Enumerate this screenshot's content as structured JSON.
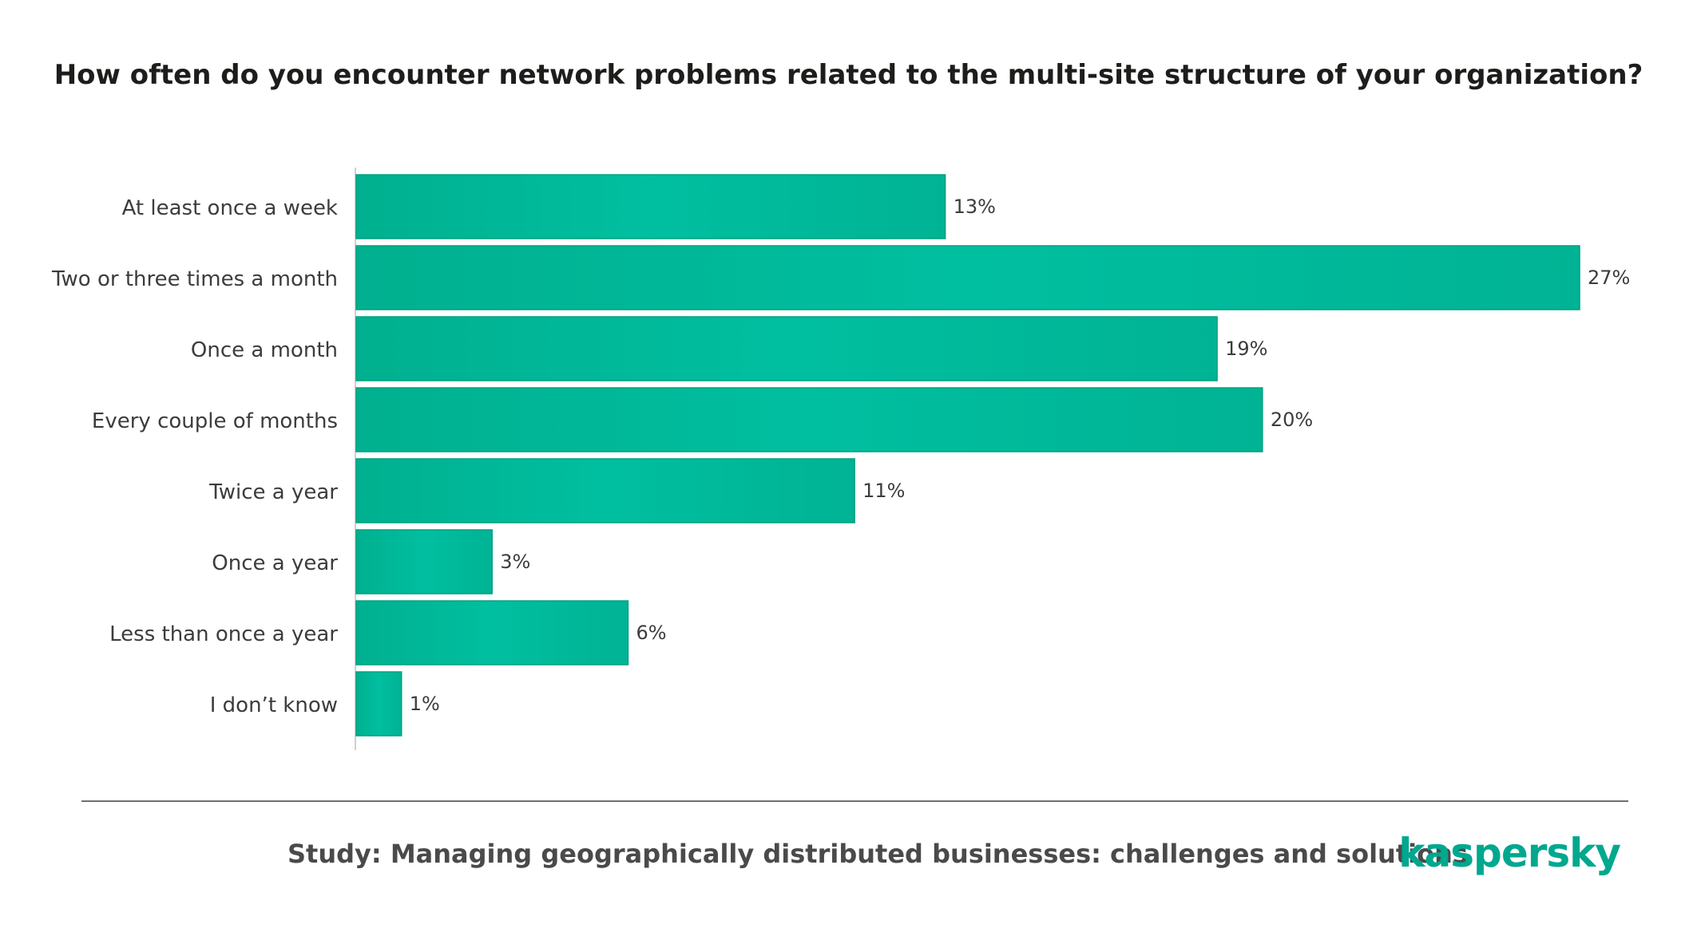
{
  "title": "How often do you encounter network problems related to the multi-site structure of your organization?",
  "chart_data": {
    "type": "bar",
    "orientation": "horizontal",
    "title": "How often do you encounter network problems related to the multi-site structure of your organization?",
    "categories": [
      "At least once a week",
      "Two or three times a month",
      "Once a month",
      "Every couple of months",
      "Twice a year",
      "Once a year",
      "Less than once a year",
      "I don’t know"
    ],
    "values": [
      13,
      27,
      19,
      20,
      11,
      3,
      6,
      1
    ],
    "value_labels": [
      "13%",
      "27%",
      "19%",
      "20%",
      "11%",
      "3%",
      "6%",
      "1%"
    ],
    "unit": "%",
    "xlim": [
      0,
      27
    ],
    "grid": false,
    "bar_color": "#00b99a"
  },
  "footer": {
    "study": "Study: Managing geographically distributed businesses: challenges and solutions",
    "logo": "kaspersky"
  },
  "colors": {
    "bar": "#00b99a",
    "bar_edge": "#00a080",
    "brand": "#00a88e"
  }
}
